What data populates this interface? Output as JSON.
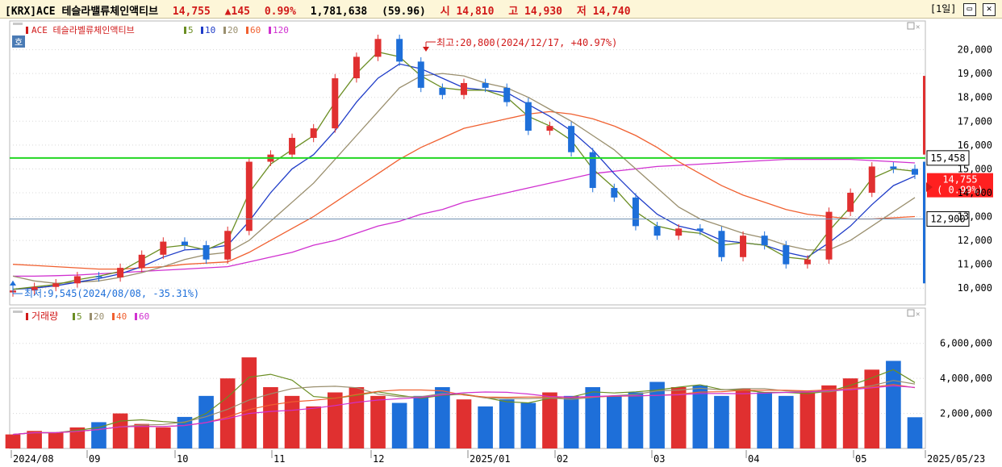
{
  "header": {
    "name": "[KRX]ACE 테슬라밸류체인액티브",
    "price": "14,755",
    "change": "▲145",
    "change_pct": "0.99%",
    "volume": "1,781,638",
    "volume_ratio": "(59.96)",
    "open": "시 14,810",
    "high": "고 14,930",
    "low": "저 14,740",
    "period": "[1일]",
    "restore_icon": "restore-window-icon",
    "close_icon": "close-window-icon"
  },
  "price_panel": {
    "ticker_label": "ACE 테슬라벨류체인액티브",
    "hoga_badge": "호",
    "ma_legend": [
      {
        "label": "5",
        "color": "#6b8e23"
      },
      {
        "label": "10",
        "color": "#1f3cc8"
      },
      {
        "label": "20",
        "color": "#9a8f6e"
      },
      {
        "label": "60",
        "color": "#f06030"
      },
      {
        "label": "120",
        "color": "#d030d0"
      }
    ],
    "high_note": "최고:20,800(2024/12/17, +40.97%)",
    "low_note": "최저:9,545(2024/08/08, -35.31%)",
    "y_ticks": [
      "20,000",
      "19,000",
      "18,000",
      "17,000",
      "16,000",
      "15,000",
      "14,000",
      "13,000",
      "12,000",
      "11,000",
      "10,000"
    ],
    "green_line_value": "15,458",
    "blue_line_value": "12,900",
    "current_value": "14,755",
    "current_pct": "( 0.99%)"
  },
  "volume_panel": {
    "label": "거래량",
    "ma_legend": [
      {
        "label": "5",
        "color": "#6b8e23"
      },
      {
        "label": "20",
        "color": "#9a8f6e"
      },
      {
        "label": "40",
        "color": "#f06030"
      },
      {
        "label": "60",
        "color": "#d030d0"
      }
    ],
    "y_ticks": [
      "6,000,000",
      "4,000,000",
      "2,000,000"
    ]
  },
  "x_axis": {
    "labels": [
      "2024/08",
      "09",
      "10",
      "11",
      "12",
      "2025/01",
      "02",
      "03",
      "04",
      "05",
      "2025/05/23"
    ]
  },
  "chart_data": {
    "type": "candlestick",
    "price_range": [
      9500,
      21000
    ],
    "volume_range": [
      0,
      7000000
    ],
    "horizontal_lines": [
      15458,
      12900
    ],
    "series": [
      {
        "name": "price",
        "values": [
          9900,
          10050,
          10200,
          10500,
          10450,
          10850,
          11400,
          11950,
          11800,
          11200,
          12400,
          15300,
          15600,
          16300,
          16700,
          18800,
          19700,
          20450,
          19500,
          18400,
          18100,
          18600,
          18400,
          17800,
          16600,
          16800,
          15700,
          14200,
          13800,
          12600,
          12200,
          12500,
          12400,
          11300,
          12200,
          11800,
          11000,
          11200,
          13200,
          14000,
          15100,
          15000,
          14755
        ]
      },
      {
        "name": "volume",
        "values": [
          800000,
          1000000,
          900000,
          1200000,
          1500000,
          2000000,
          1400000,
          1200000,
          1800000,
          3000000,
          4000000,
          5200000,
          3500000,
          3000000,
          2400000,
          3200000,
          3500000,
          3000000,
          2600000,
          3000000,
          3500000,
          2800000,
          2400000,
          2800000,
          2600000,
          3200000,
          3000000,
          3500000,
          3000000,
          3200000,
          3800000,
          3500000,
          3600000,
          3000000,
          3400000,
          3200000,
          3000000,
          3200000,
          3600000,
          4000000,
          4500000,
          5000000,
          1781638
        ]
      },
      {
        "name": "MA5",
        "values": [
          9950,
          10050,
          10150,
          10350,
          10500,
          10700,
          11200,
          11700,
          11800,
          11600,
          12000,
          14000,
          15200,
          15800,
          16400,
          17800,
          19000,
          19900,
          19700,
          18900,
          18400,
          18300,
          18300,
          18000,
          17200,
          16800,
          16200,
          15000,
          14200,
          13200,
          12600,
          12400,
          12300,
          11800,
          11900,
          11800,
          11300,
          11200,
          12400,
          13400,
          14600,
          15000,
          14900
        ]
      },
      {
        "name": "MA10",
        "values": [
          9950,
          10000,
          10100,
          10250,
          10400,
          10600,
          10900,
          11300,
          11600,
          11650,
          11800,
          12800,
          14000,
          15000,
          15600,
          16600,
          17800,
          18800,
          19400,
          19200,
          18800,
          18400,
          18300,
          18200,
          17700,
          17200,
          16600,
          15800,
          14800,
          13900,
          13100,
          12600,
          12400,
          12000,
          11900,
          11800,
          11500,
          11300,
          11900,
          12600,
          13500,
          14300,
          14700
        ]
      },
      {
        "name": "MA20",
        "values": [
          10500,
          10300,
          10200,
          10250,
          10300,
          10450,
          10650,
          10900,
          11200,
          11400,
          11500,
          12000,
          12800,
          13600,
          14400,
          15400,
          16400,
          17400,
          18400,
          18900,
          19000,
          18900,
          18600,
          18400,
          18000,
          17500,
          17000,
          16400,
          15800,
          15000,
          14200,
          13400,
          12900,
          12600,
          12300,
          12100,
          11800,
          11600,
          11600,
          12000,
          12600,
          13200,
          13800
        ]
      },
      {
        "name": "MA60",
        "values": [
          11000,
          10950,
          10900,
          10850,
          10800,
          10800,
          10850,
          10900,
          11000,
          11050,
          11100,
          11500,
          12000,
          12500,
          13000,
          13600,
          14200,
          14800,
          15400,
          15900,
          16300,
          16700,
          16900,
          17100,
          17300,
          17400,
          17300,
          17100,
          16800,
          16400,
          15900,
          15300,
          14800,
          14300,
          13900,
          13600,
          13300,
          13100,
          13000,
          12900,
          12900,
          12950,
          13000
        ]
      },
      {
        "name": "MA120",
        "values": [
          10500,
          10500,
          10520,
          10550,
          10600,
          10650,
          10700,
          10750,
          10800,
          10850,
          10900,
          11100,
          11300,
          11500,
          11800,
          12000,
          12300,
          12600,
          12800,
          13100,
          13300,
          13600,
          13800,
          14000,
          14200,
          14400,
          14600,
          14800,
          14900,
          15000,
          15100,
          15150,
          15200,
          15250,
          15300,
          15350,
          15400,
          15400,
          15400,
          15400,
          15350,
          15300,
          15250
        ]
      }
    ]
  }
}
